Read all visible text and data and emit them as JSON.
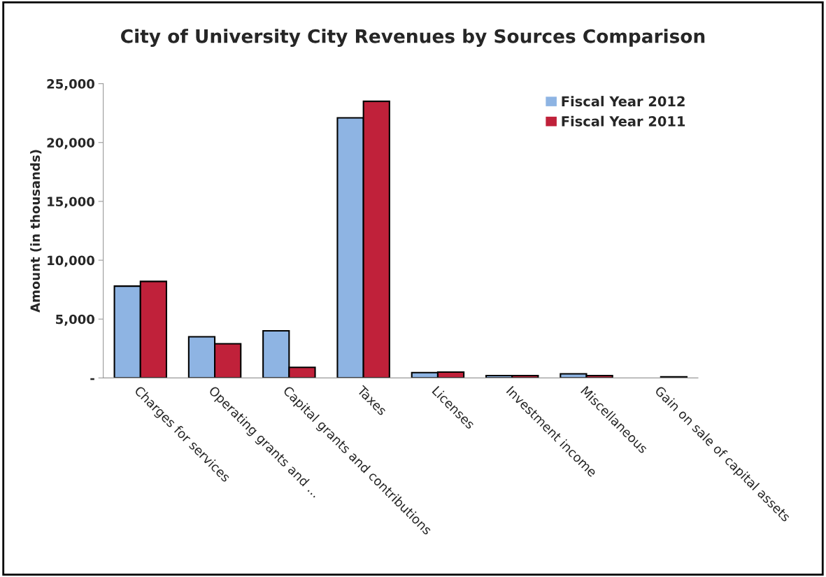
{
  "chart_data": {
    "type": "bar",
    "title": "City of University City Revenues by Sources Comparison",
    "ylabel": "Amount (in thousands)",
    "categories": [
      "Charges for services",
      "Operating grants and ...",
      "Capital grants and contributions",
      "Taxes",
      "Licenses",
      "Investment income",
      "Miscellaneous",
      "Gain on sale of capital assets"
    ],
    "series": [
      {
        "name": "Fiscal Year 2012",
        "color": "#8eb4e3",
        "values": [
          7800,
          3500,
          4000,
          22100,
          450,
          200,
          350,
          null
        ]
      },
      {
        "name": "Fiscal Year 2011",
        "color": "#c0213a",
        "values": [
          8200,
          2900,
          900,
          23500,
          500,
          200,
          200,
          100
        ]
      }
    ],
    "ylim": [
      0,
      25000
    ],
    "yticks": [
      {
        "value": 0,
        "label": "-"
      },
      {
        "value": 5000,
        "label": "5,000"
      },
      {
        "value": 10000,
        "label": "10,000"
      },
      {
        "value": 15000,
        "label": "15,000"
      },
      {
        "value": 20000,
        "label": "20,000"
      },
      {
        "value": 25000,
        "label": "25,000"
      }
    ],
    "grid": false,
    "legend": "top right"
  }
}
